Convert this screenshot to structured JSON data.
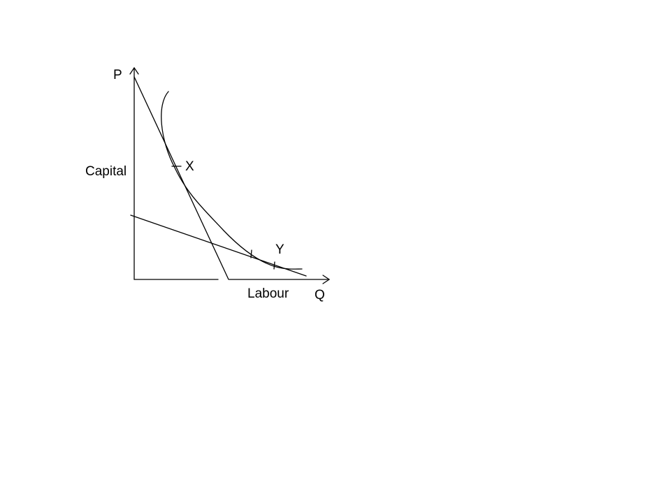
{
  "labels": {
    "price_axis": "P",
    "capital": "Capital",
    "point_x": "X",
    "point_y": "Y",
    "labour": "Labour",
    "quantity_axis": "Q"
  },
  "colors": {
    "stroke": "#000000",
    "background": "#ffffff"
  }
}
